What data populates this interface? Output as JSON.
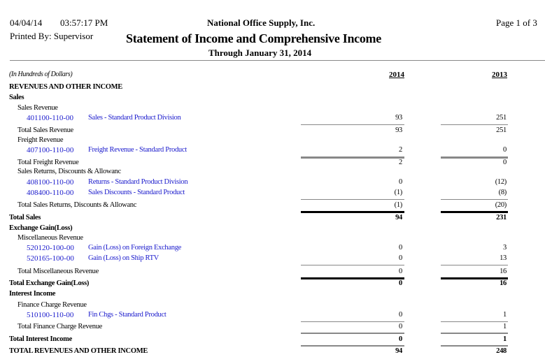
{
  "header": {
    "date": "04/04/14",
    "time": "03:57:17 PM",
    "company": "National Office Supply, Inc.",
    "page": "Page 1 of  3",
    "printed_by": "Printed By: Supervisor",
    "title": "Statement of Income and Comprehensive Income",
    "period": "Through January 31, 2014"
  },
  "columns": {
    "units": "(In Hundreds of Dollars)",
    "col1": "2014",
    "col2": "2013"
  },
  "rows": [
    {
      "type": "heading",
      "label": "REVENUES AND OTHER INCOME"
    },
    {
      "type": "heading",
      "label": "Sales"
    },
    {
      "type": "sub",
      "label": "Sales Revenue"
    },
    {
      "type": "account",
      "code": "401100-110-00",
      "label": "Sales - Standard Product Division",
      "v1": "93",
      "v2": "251"
    },
    {
      "type": "total",
      "label": "Total Sales Revenue",
      "v1": "93",
      "v2": "251"
    },
    {
      "type": "sub",
      "label": "Freight Revenue"
    },
    {
      "type": "account",
      "code": "407100-110-00",
      "label": "Freight Revenue - Standard Product",
      "v1": "2",
      "v2": "0"
    },
    {
      "type": "total",
      "label": "Total Freight Revenue",
      "v1": "2",
      "v2": "0"
    },
    {
      "type": "sub",
      "label": "Sales Returns, Discounts & Allowanc"
    },
    {
      "type": "account",
      "code": "408100-110-00",
      "label": "Returns - Standard Product Division",
      "v1": "0",
      "v2": "(12)"
    },
    {
      "type": "account",
      "code": "408400-110-00",
      "label": "Sales Discounts - Standard Product",
      "v1": "(1)",
      "v2": "(8)"
    },
    {
      "type": "total",
      "label": "Total Sales Returns, Discounts & Allowanc",
      "v1": "(1)",
      "v2": "(20)"
    },
    {
      "type": "grand",
      "label": "Total Sales",
      "v1": "94",
      "v2": "231"
    },
    {
      "type": "heading",
      "label": "Exchange Gain(Loss)"
    },
    {
      "type": "sub",
      "label": "Miscellaneous Revenue"
    },
    {
      "type": "account",
      "code": "520120-100-00",
      "label": "Gain (Loss) on Foreign Exchange",
      "v1": "0",
      "v2": "3"
    },
    {
      "type": "account",
      "code": "520165-100-00",
      "label": "Gain (Loss) on Ship RTV",
      "v1": "0",
      "v2": "13"
    },
    {
      "type": "total",
      "label": "Total Miscellaneous Revenue",
      "v1": "0",
      "v2": "16"
    },
    {
      "type": "grand",
      "label": "Total Exchange Gain(Loss)",
      "v1": "0",
      "v2": "16"
    },
    {
      "type": "heading",
      "label": "Interest Income"
    },
    {
      "type": "sub",
      "label": "Finance Charge Revenue"
    },
    {
      "type": "account",
      "code": "510100-110-00",
      "label": "Fin Chgs - Standard Product",
      "v1": "0",
      "v2": "1"
    },
    {
      "type": "total",
      "label": "Total Finance Charge Revenue",
      "v1": "0",
      "v2": "1"
    },
    {
      "type": "grand",
      "label": "Total Interest Income",
      "v1": "0",
      "v2": "1"
    },
    {
      "type": "grand",
      "label": "TOTAL REVENUES AND OTHER INCOME",
      "v1": "94",
      "v2": "248"
    }
  ]
}
